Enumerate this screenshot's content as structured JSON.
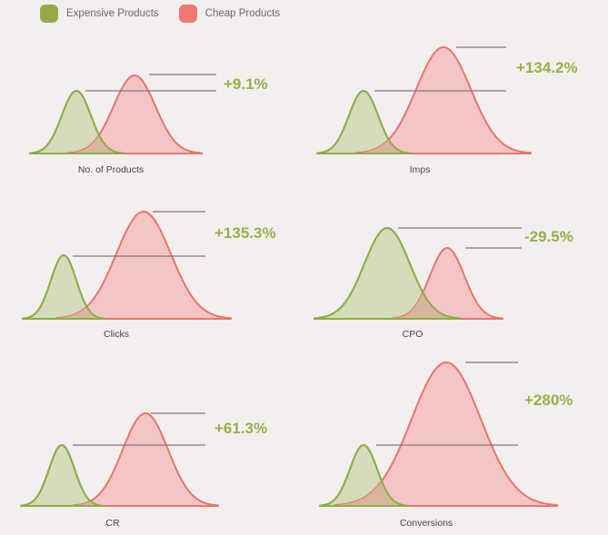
{
  "legend": {
    "items": [
      {
        "label": "Expensive Products",
        "color": "#95ab4b"
      },
      {
        "label": "Cheap Products",
        "color": "#f07a72"
      }
    ]
  },
  "colors": {
    "expensive_stroke": "#8ead46",
    "expensive_fill": "#d6dcbb",
    "cheap_stroke": "#e9746b",
    "cheap_fill": "#f5c1c1",
    "overlap_fill": "#d5b49d",
    "pct_text": "#95b146",
    "leader_line": "#7f7b7b",
    "label_text": "#4a4646"
  },
  "chart_data": [
    {
      "type": "area",
      "label": "No. of Products",
      "change": "+9.1%",
      "series": [
        {
          "name": "Expensive Products",
          "relative_height": 1.0
        },
        {
          "name": "Cheap Products",
          "relative_height": 1.091
        }
      ]
    },
    {
      "type": "area",
      "label": "Imps",
      "change": "+134.2%",
      "series": [
        {
          "name": "Expensive Products",
          "relative_height": 1.0
        },
        {
          "name": "Cheap Products",
          "relative_height": 2.342
        }
      ]
    },
    {
      "type": "area",
      "label": "Clicks",
      "change": "+135.3%",
      "series": [
        {
          "name": "Expensive Products",
          "relative_height": 1.0
        },
        {
          "name": "Cheap Products",
          "relative_height": 2.353
        }
      ]
    },
    {
      "type": "area",
      "label": "CPO",
      "change": "-29.5%",
      "series": [
        {
          "name": "Expensive Products",
          "relative_height": 1.0
        },
        {
          "name": "Cheap Products",
          "relative_height": 0.705
        }
      ]
    },
    {
      "type": "area",
      "label": "CR",
      "change": "+61.3%",
      "series": [
        {
          "name": "Expensive Products",
          "relative_height": 1.0
        },
        {
          "name": "Cheap Products",
          "relative_height": 1.613
        }
      ]
    },
    {
      "type": "area",
      "label": "Conversions",
      "change": "+280%",
      "series": [
        {
          "name": "Expensive Products",
          "relative_height": 1.0
        },
        {
          "name": "Cheap Products",
          "relative_height": 3.8
        }
      ]
    }
  ]
}
